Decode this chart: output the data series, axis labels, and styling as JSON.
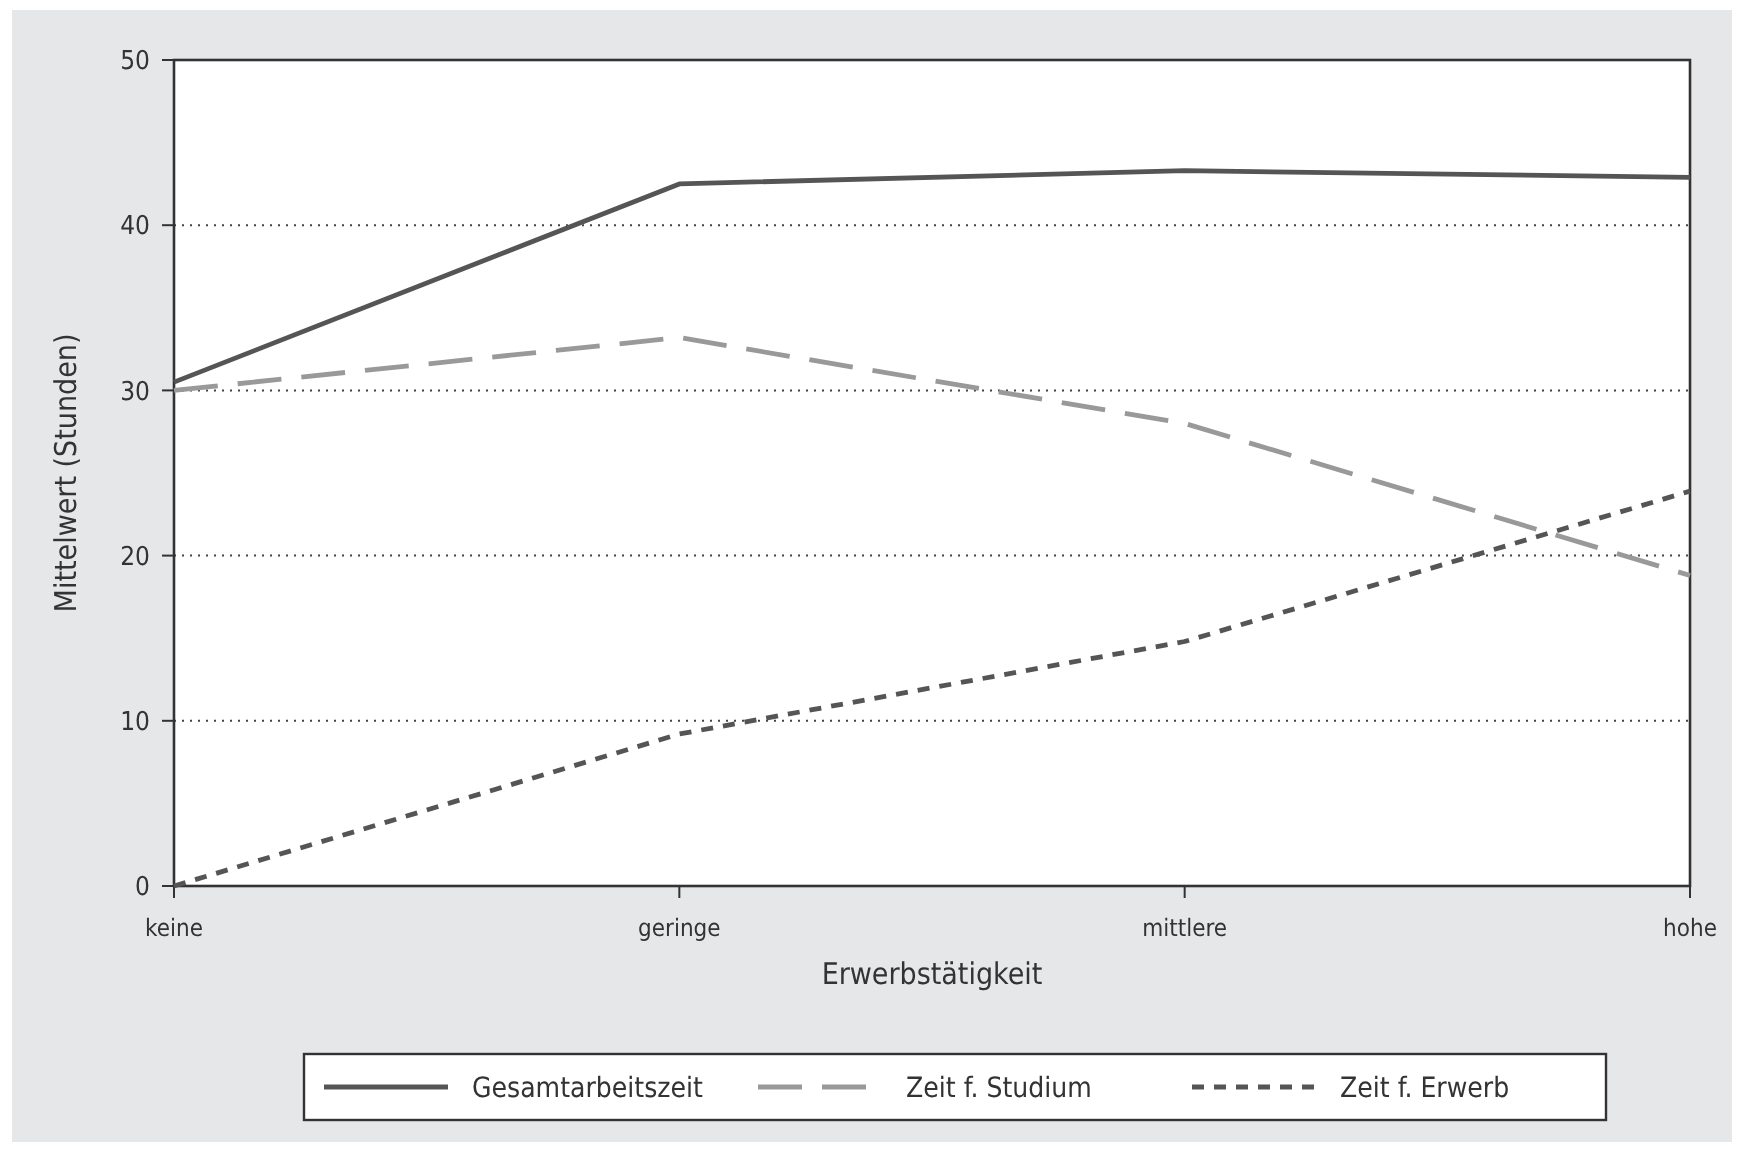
{
  "chart_data": {
    "type": "line",
    "xlabel": "Erwerbstätigkeit",
    "ylabel": "Mittelwert  (Stunden)",
    "categories": [
      "keine",
      "geringe",
      "mittlere",
      "hohe"
    ],
    "series": [
      {
        "name": "Gesamtarbeitszeit",
        "color": "#555555",
        "line_style": "solid",
        "values": [
          30.5,
          42.5,
          43.3,
          42.9
        ]
      },
      {
        "name": "Zeit f. Studium",
        "color": "#999999",
        "line_style": "dashed",
        "values": [
          30,
          33.2,
          28,
          18.8
        ]
      },
      {
        "name": "Zeit f. Erwerb",
        "color": "#555555",
        "line_style": "dotted",
        "values": [
          0,
          9.2,
          14.8,
          23.9
        ]
      }
    ],
    "ylim": [
      0,
      50
    ],
    "yticks": [
      0,
      10,
      20,
      30,
      40,
      50
    ],
    "grid": "y",
    "legend": "bottom",
    "marker": "none"
  }
}
